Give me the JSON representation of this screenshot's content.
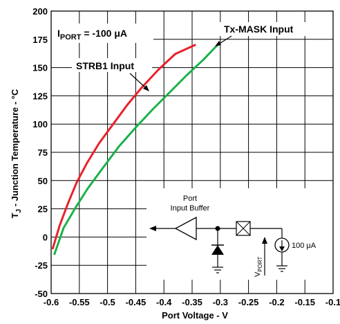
{
  "chart_data": {
    "type": "line",
    "xlabel": "Port Voltage - V",
    "ylabel_main": "T",
    "ylabel_sub": "J",
    "ylabel_rest": " - Junction Temperature - °C",
    "xlim": [
      -0.6,
      -0.1
    ],
    "ylim": [
      -50,
      200
    ],
    "x_ticks": [
      "-0.6",
      "-0.55",
      "-0.5",
      "-0.45",
      "-0.4",
      "-0.35",
      "-0.3",
      "-0.25",
      "-0.2",
      "-0.15",
      "-0.1"
    ],
    "y_ticks": [
      "200",
      "175",
      "150",
      "125",
      "100",
      "75",
      "50",
      "25",
      "0",
      "-25",
      "-50"
    ],
    "grid": true,
    "series": [
      {
        "name": "STRB1 Input",
        "color": "#e8212b",
        "x": [
          -0.597,
          -0.585,
          -0.57,
          -0.555,
          -0.537,
          -0.515,
          -0.49,
          -0.465,
          -0.44,
          -0.41,
          -0.38,
          -0.345
        ],
        "y": [
          -10,
          10,
          30,
          48,
          65,
          83,
          100,
          117,
          132,
          148,
          162,
          170
        ]
      },
      {
        "name": "Tx-MASK Input",
        "color": "#1ab14a",
        "x": [
          -0.594,
          -0.578,
          -0.558,
          -0.535,
          -0.51,
          -0.48,
          -0.45,
          -0.42,
          -0.39,
          -0.36,
          -0.33,
          -0.305
        ],
        "y": [
          -15,
          8,
          25,
          43,
          60,
          80,
          97,
          113,
          128,
          143,
          157,
          170
        ]
      }
    ],
    "annotations": {
      "iport_main": "I",
      "iport_sub": "PORT",
      "iport_rest": " = -100 μA",
      "strb1": "STRB1 Input",
      "txmask": "Tx-MASK Input"
    },
    "inset": {
      "buffer_line1": "Port",
      "buffer_line2": "Input Buffer",
      "current_source": "100 μA",
      "vport_main": "V",
      "vport_sub": "PORT"
    }
  }
}
